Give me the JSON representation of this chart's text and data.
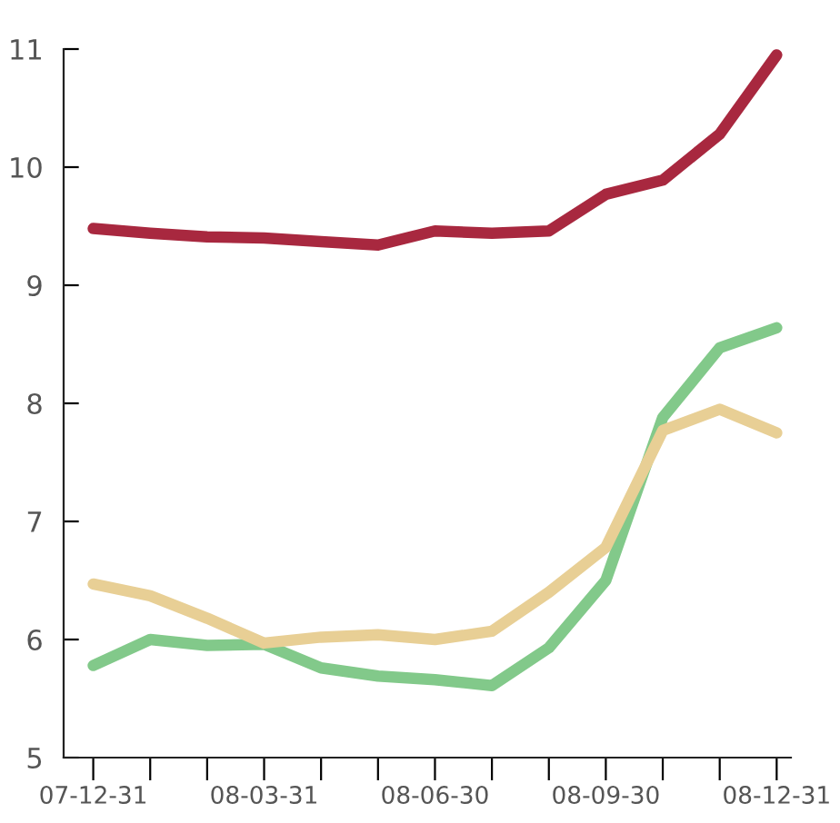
{
  "chart_data": {
    "type": "line",
    "categories": [
      "07-12-31",
      null,
      null,
      "08-03-31",
      null,
      null,
      "08-06-30",
      null,
      null,
      "08-09-30",
      null,
      null,
      "08-12-31"
    ],
    "series": [
      {
        "color": "#a8283f",
        "values": [
          9.48,
          9.44,
          9.41,
          9.4,
          9.37,
          9.34,
          9.46,
          9.44,
          9.46,
          9.77,
          9.89,
          10.28,
          10.95
        ]
      },
      {
        "color": "#82c98a",
        "values": [
          5.78,
          6.0,
          5.95,
          5.96,
          5.76,
          5.69,
          5.66,
          5.61,
          5.93,
          6.5,
          7.88,
          8.47,
          8.64
        ]
      },
      {
        "color": "#e8cf95",
        "values": [
          6.47,
          6.37,
          6.18,
          5.97,
          6.02,
          6.04,
          6.0,
          6.07,
          6.4,
          6.78,
          7.77,
          7.95,
          7.75
        ]
      }
    ],
    "ylim": [
      5,
      11
    ],
    "yticks": [
      5,
      6,
      7,
      8,
      9,
      10,
      11
    ],
    "grid": false,
    "legend": false,
    "marker": "none",
    "line_style": "solid"
  }
}
